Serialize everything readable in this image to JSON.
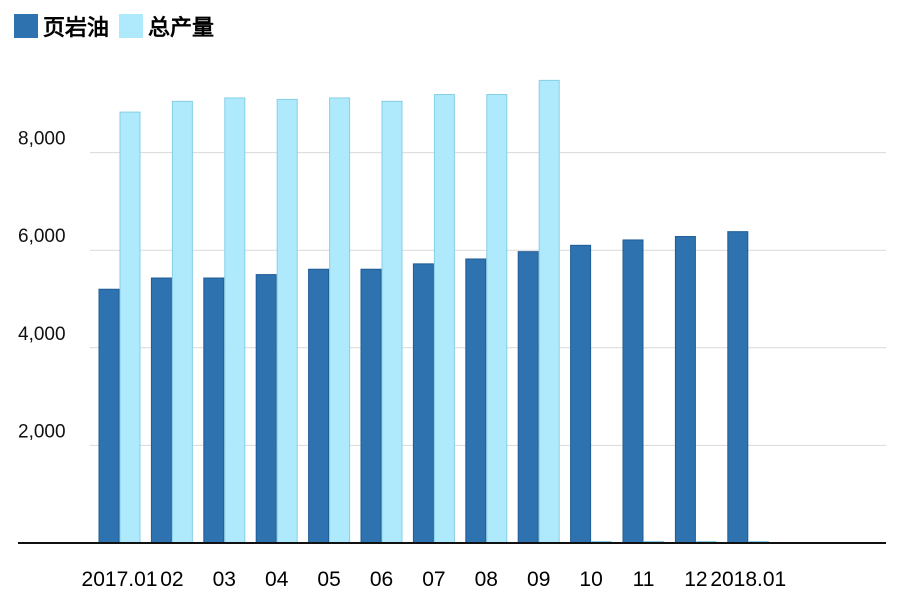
{
  "colors": {
    "shale": "#2e72b0",
    "shale_edge": "#1f5d96",
    "total": "#aeeafb",
    "total_edge": "#86cfe6",
    "grid": "#d9d9d9",
    "axis": "#111111"
  },
  "legend": {
    "items": [
      {
        "label": "页岩油",
        "color": "#2e72b0"
      },
      {
        "label": "总产量",
        "color": "#aeeafb"
      }
    ]
  },
  "chart_data": {
    "type": "bar",
    "title": "",
    "xlabel": "",
    "ylabel": "",
    "categories": [
      "2017.01",
      "02",
      "03",
      "04",
      "05",
      "06",
      "07",
      "08",
      "09",
      "10",
      "11",
      "12",
      "2018.01"
    ],
    "series": [
      {
        "name": "页岩油",
        "values": [
          5200,
          5430,
          5430,
          5500,
          5610,
          5610,
          5720,
          5820,
          5970,
          6100,
          6210,
          6280,
          6380
        ]
      },
      {
        "name": "总产量",
        "values": [
          8830,
          9050,
          9120,
          9090,
          9120,
          9050,
          9190,
          9190,
          9480,
          null,
          null,
          null,
          null
        ]
      }
    ],
    "ylim": [
      0,
      10000
    ],
    "yticks": [
      {
        "value": 2000,
        "label": "2,000"
      },
      {
        "value": 4000,
        "label": "4,000"
      },
      {
        "value": 6000,
        "label": "6,000"
      },
      {
        "value": 8000,
        "label": "8,000"
      }
    ],
    "grid": true,
    "legend_position": "top-left"
  }
}
